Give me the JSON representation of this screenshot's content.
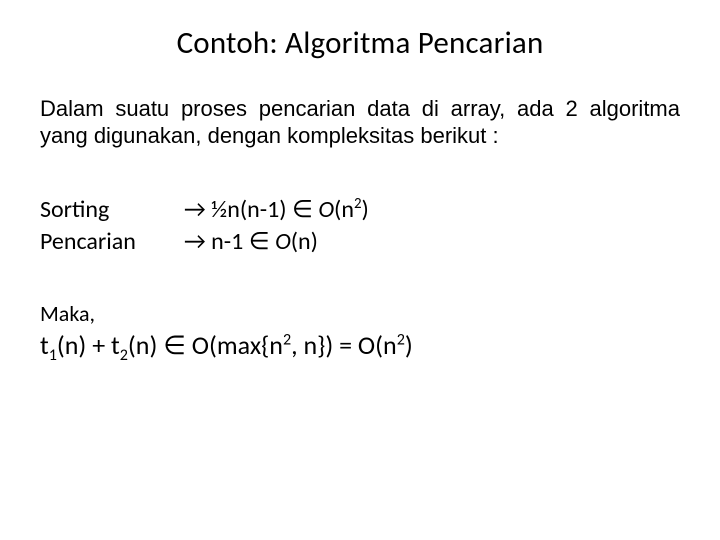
{
  "title": "Contoh: Algoritma Pencarian",
  "intro": "Dalam suatu proses pencarian data di array, ada 2 algoritma yang digunakan, dengan kompleksitas berikut :",
  "alg": {
    "row1": {
      "label": "Sorting",
      "arrow": "→",
      "expr_a": "½n(n-1) ",
      "elem": "∈",
      "space": " ",
      "O": "O",
      "open": "(n",
      "exp": "2",
      "close": ")"
    },
    "row2": {
      "label": "Pencarian",
      "arrow": "→",
      "expr_a": "n-1 ",
      "elem": "∈",
      "space": " ",
      "O": "O",
      "open": "(n)",
      "exp": "",
      "close": ""
    }
  },
  "maka": "Maka,",
  "final": {
    "t1a": "t",
    "t1s": "1",
    "t1b": "(n) + t",
    "t2s": "2",
    "t2b": "(n) ",
    "elem": "∈",
    "space": " ",
    "O": "O",
    "mid_a": "(max{n",
    "exp1": "2",
    "mid_b": ", n}) = O(n",
    "exp2": "2",
    "close": ")"
  },
  "style": {
    "background": "#ffffff",
    "text_color": "#000000",
    "title_fontsize": 31,
    "intro_fontsize": 22,
    "alg_fontsize": 24,
    "final_fontsize": 26,
    "font_family_title": "Calibri",
    "font_family_body": "Arial"
  }
}
